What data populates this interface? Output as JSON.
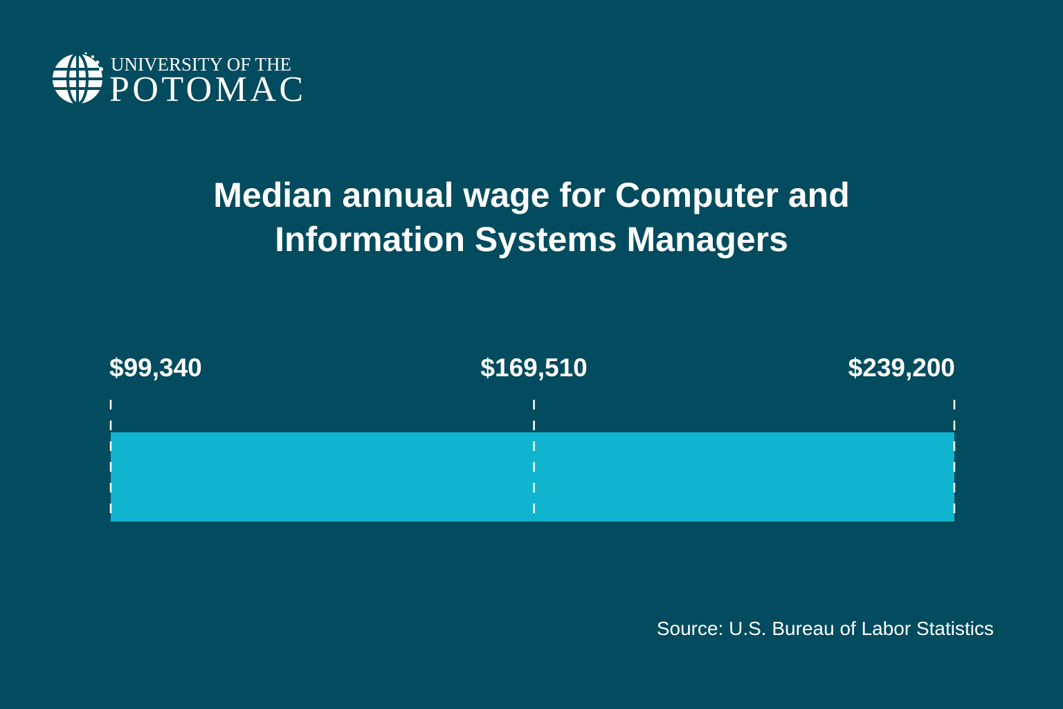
{
  "logo": {
    "line1": "UNIVERSITY OF THE",
    "line2": "POTOMAC"
  },
  "source": "Source: U.S. Bureau of Labor Statistics",
  "colors": {
    "background": "#034b5e",
    "bar": "#10b4cf",
    "marker": "#ffffff"
  },
  "chart_data": {
    "type": "bar",
    "orientation": "horizontal",
    "title": "Median annual wage for Computer and Information Systems Managers",
    "title_lines": [
      "Median annual wage for Computer and",
      "Information Systems Managers"
    ],
    "range": [
      99340,
      239200
    ],
    "markers": [
      {
        "value": 99340,
        "label": "$99,340"
      },
      {
        "value": 169510,
        "label": "$169,510"
      },
      {
        "value": 239200,
        "label": "$239,200"
      }
    ]
  }
}
